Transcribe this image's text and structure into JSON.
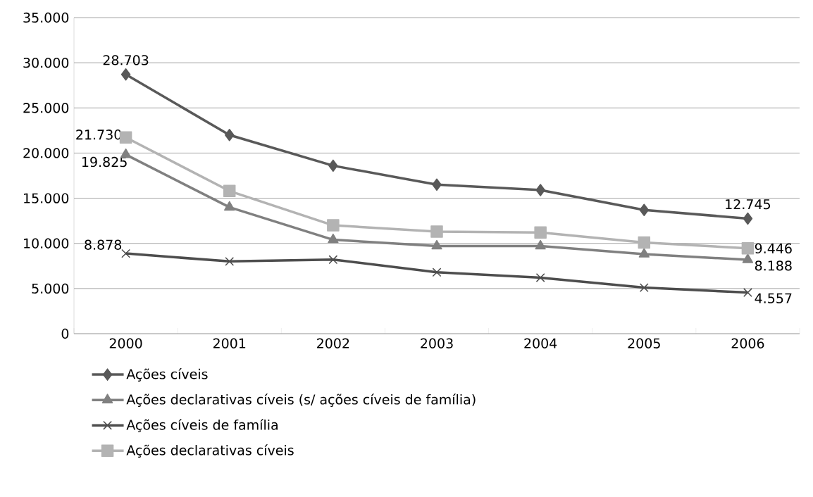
{
  "chart_data": {
    "type": "line",
    "categories": [
      "2000",
      "2001",
      "2002",
      "2003",
      "2004",
      "2005",
      "2006"
    ],
    "ylim": [
      0,
      35000
    ],
    "yticks": [
      {
        "value": 0,
        "label": "0"
      },
      {
        "value": 5000,
        "label": "5.000"
      },
      {
        "value": 10000,
        "label": "10.000"
      },
      {
        "value": 15000,
        "label": "15.000"
      },
      {
        "value": 20000,
        "label": "20.000"
      },
      {
        "value": 25000,
        "label": "25.000"
      },
      {
        "value": 30000,
        "label": "30.000"
      },
      {
        "value": 35000,
        "label": "35.000"
      }
    ],
    "grid": "y",
    "legend": "bottom",
    "line_style": "solid",
    "series": [
      {
        "name": "Ações cíveis",
        "color": "#595959",
        "marker": "diamond",
        "values": [
          28703,
          22000,
          18600,
          16500,
          15900,
          13700,
          12745
        ],
        "value_labels": [
          "28.703",
          null,
          null,
          null,
          null,
          null,
          "12.745"
        ]
      },
      {
        "name": "Ações declarativas cíveis (s/ ações cíveis de família)",
        "color": "#808080",
        "marker": "triangle",
        "values": [
          19825,
          14000,
          10400,
          9700,
          9700,
          8800,
          8188
        ],
        "value_labels": [
          "19.825",
          null,
          null,
          null,
          null,
          null,
          "8.188"
        ]
      },
      {
        "name": "Ações cíveis de família",
        "color": "#4d4d4d",
        "marker": "cross",
        "values": [
          8878,
          8000,
          8200,
          6800,
          6200,
          5100,
          4557
        ],
        "value_labels": [
          "8.878",
          null,
          null,
          null,
          null,
          null,
          "4.557"
        ]
      },
      {
        "name": "Ações declarativas cíveis",
        "color": "#b3b3b3",
        "marker": "square",
        "values": [
          21730,
          15800,
          12000,
          11300,
          11200,
          10100,
          9446
        ],
        "value_labels": [
          "21.730",
          null,
          null,
          null,
          null,
          null,
          "9.446"
        ]
      }
    ]
  }
}
